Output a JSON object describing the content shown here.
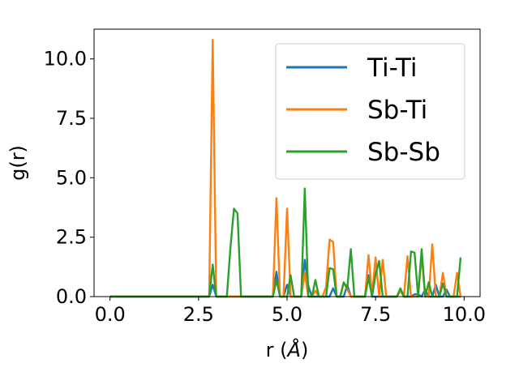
{
  "chart_data": {
    "type": "line",
    "title": "",
    "xlabel_prefix": "r (",
    "xlabel_unit": "Å",
    "xlabel_suffix": ")",
    "ylabel": "g(r)",
    "xlim": [
      -0.45,
      10.45
    ],
    "ylim": [
      0,
      11.25
    ],
    "xticks": [
      0.0,
      2.5,
      5.0,
      7.5,
      10.0
    ],
    "xtick_labels": [
      "0.0",
      "2.5",
      "5.0",
      "7.5",
      "10.0"
    ],
    "yticks": [
      0.0,
      2.5,
      5.0,
      7.5,
      10.0
    ],
    "ytick_labels": [
      "0.0",
      "2.5",
      "5.0",
      "7.5",
      "10.0"
    ],
    "grid": false,
    "legend_position": "top-right",
    "x": [
      0.0,
      0.1,
      0.2,
      0.3,
      0.4,
      0.5,
      0.6,
      0.7,
      0.8,
      0.9,
      1.0,
      1.1,
      1.2,
      1.3,
      1.4,
      1.5,
      1.6,
      1.7,
      1.8,
      1.9,
      2.0,
      2.1,
      2.2,
      2.3,
      2.4,
      2.5,
      2.6,
      2.7,
      2.8,
      2.9,
      3.0,
      3.1,
      3.2,
      3.3,
      3.4,
      3.5,
      3.6,
      3.7,
      3.8,
      3.9,
      4.0,
      4.1,
      4.2,
      4.3,
      4.4,
      4.5,
      4.6,
      4.7,
      4.8,
      4.9,
      5.0,
      5.1,
      5.2,
      5.3,
      5.4,
      5.5,
      5.6,
      5.7,
      5.8,
      5.9,
      6.0,
      6.1,
      6.2,
      6.3,
      6.4,
      6.5,
      6.6,
      6.7,
      6.8,
      6.9,
      7.0,
      7.1,
      7.2,
      7.3,
      7.4,
      7.5,
      7.6,
      7.7,
      7.8,
      7.9,
      8.0,
      8.1,
      8.2,
      8.3,
      8.4,
      8.5,
      8.6,
      8.7,
      8.8,
      8.9,
      9.0,
      9.1,
      9.2,
      9.3,
      9.4,
      9.5,
      9.6,
      9.7,
      9.8,
      9.9
    ],
    "series": [
      {
        "name": "Ti-Ti",
        "color": "#1f77b4",
        "values": [
          0,
          0,
          0,
          0,
          0,
          0,
          0,
          0,
          0,
          0,
          0,
          0,
          0,
          0,
          0,
          0,
          0,
          0,
          0,
          0,
          0,
          0,
          0,
          0,
          0,
          0,
          0,
          0,
          0,
          0.5,
          0,
          0,
          0,
          0,
          0,
          0,
          0,
          0,
          0,
          0,
          0,
          0,
          0,
          0,
          0,
          0,
          0,
          1.05,
          0,
          0,
          0.5,
          0,
          0,
          0,
          0,
          1.55,
          0.45,
          0,
          0,
          0,
          0,
          0,
          0,
          0.35,
          0,
          0,
          0,
          0.5,
          0,
          0,
          0,
          0,
          0,
          0.9,
          0,
          0,
          0,
          0,
          0,
          0,
          0,
          0,
          0.25,
          0,
          0,
          0,
          0.1,
          0.1,
          0,
          0.3,
          0,
          0,
          0.5,
          0,
          0,
          0.3,
          0,
          0,
          0,
          0
        ]
      },
      {
        "name": "Sb-Ti",
        "color": "#ff7f0e",
        "values": [
          0,
          0,
          0,
          0,
          0,
          0,
          0,
          0,
          0,
          0,
          0,
          0,
          0,
          0,
          0,
          0,
          0,
          0,
          0,
          0,
          0,
          0,
          0,
          0,
          0,
          0,
          0,
          0,
          0,
          10.8,
          0,
          0,
          0,
          0,
          0,
          0,
          0,
          0,
          0,
          0,
          0,
          0,
          0,
          0,
          0,
          0,
          0,
          4.15,
          0,
          0,
          3.7,
          0,
          0,
          0,
          0,
          1.0,
          0,
          0,
          0.25,
          0,
          0,
          0.4,
          2.4,
          2.3,
          0,
          0,
          0.6,
          0.3,
          0,
          0,
          0,
          0,
          0,
          1.75,
          0.1,
          1.65,
          0,
          1.55,
          0,
          0,
          0,
          0,
          0.25,
          0,
          1.7,
          0,
          0,
          0,
          1.75,
          0,
          0,
          2.2,
          0,
          0,
          1.0,
          0,
          0,
          0,
          1.0,
          0
        ]
      },
      {
        "name": "Sb-Sb",
        "color": "#2ca02c",
        "values": [
          0,
          0,
          0,
          0,
          0,
          0,
          0,
          0,
          0,
          0,
          0,
          0,
          0,
          0,
          0,
          0,
          0,
          0,
          0,
          0,
          0,
          0,
          0,
          0,
          0,
          0,
          0,
          0,
          0,
          1.35,
          0,
          0,
          0,
          0,
          2.05,
          3.7,
          3.5,
          0,
          0,
          0,
          0,
          0,
          0,
          0,
          0,
          0,
          0,
          0.7,
          0,
          0,
          0,
          0.9,
          0,
          0,
          0,
          4.55,
          0,
          0,
          0.7,
          0,
          0,
          0,
          1.2,
          1.15,
          0,
          0,
          0.6,
          0.35,
          2.0,
          0,
          0,
          0,
          0,
          0.8,
          0,
          0.95,
          1.5,
          0,
          0,
          0,
          0,
          0,
          0.35,
          0,
          0,
          1.9,
          1.85,
          0,
          2.0,
          0,
          0.6,
          0,
          0,
          0,
          0.55,
          0,
          0,
          0,
          0,
          1.65
        ]
      }
    ]
  }
}
